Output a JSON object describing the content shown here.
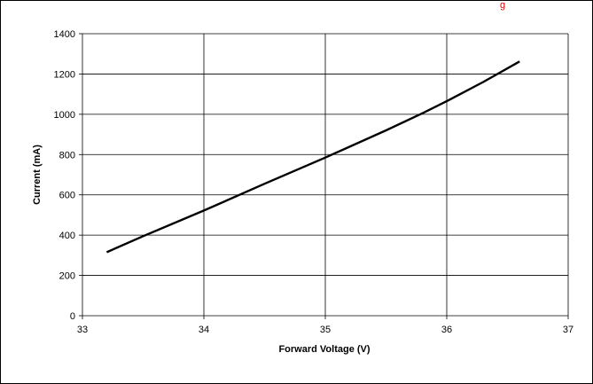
{
  "chart_data": {
    "type": "line",
    "title": "",
    "top_text_fragment": "g",
    "xlabel": "Forward Voltage (V)",
    "ylabel": "Current (mA)",
    "xlim": [
      33,
      37
    ],
    "ylim": [
      0,
      1400
    ],
    "x_ticks": [
      "33",
      "34",
      "35",
      "36",
      "37"
    ],
    "y_ticks": [
      "0",
      "200",
      "400",
      "600",
      "800",
      "1000",
      "1200",
      "1400"
    ],
    "grid": true,
    "legend": "none",
    "line_color": "#000000",
    "grid_color": "#000000",
    "top_text_color": "#e00000",
    "series": [
      {
        "x": [
          33.2,
          33.5,
          34.0,
          34.5,
          35.0,
          35.5,
          35.8,
          36.0,
          36.3,
          36.6
        ],
        "y": [
          315,
          395,
          522,
          655,
          785,
          920,
          1005,
          1065,
          1160,
          1262
        ]
      }
    ]
  }
}
